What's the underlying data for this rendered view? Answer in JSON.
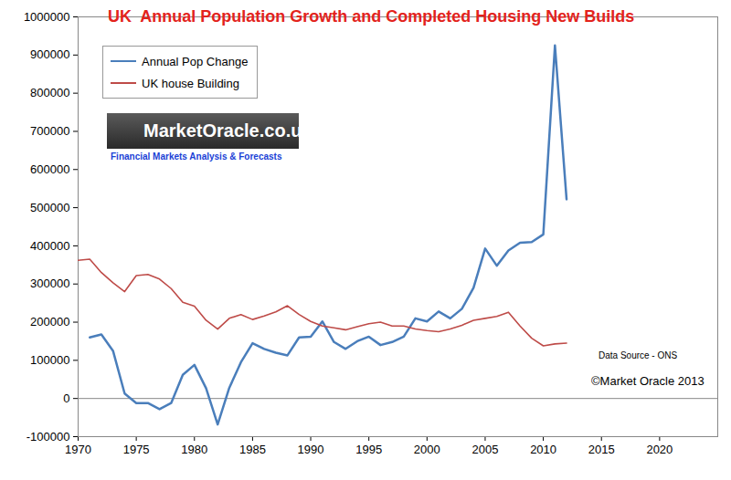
{
  "chart_data": {
    "type": "line",
    "title": "UK  Annual Population Growth and Completed Housing New Builds",
    "x": [
      1970,
      1971,
      1972,
      1973,
      1974,
      1975,
      1976,
      1977,
      1978,
      1979,
      1980,
      1981,
      1982,
      1983,
      1984,
      1985,
      1986,
      1987,
      1988,
      1989,
      1990,
      1991,
      1992,
      1993,
      1994,
      1995,
      1996,
      1997,
      1998,
      1999,
      2000,
      2001,
      2002,
      2003,
      2004,
      2005,
      2006,
      2007,
      2008,
      2009,
      2010,
      2011,
      2012
    ],
    "series": [
      {
        "name": "Annual Pop Change",
        "color": "#4a7ebb",
        "values": [
          null,
          160000,
          168000,
          125000,
          13000,
          -12000,
          -12000,
          -28000,
          -12000,
          62000,
          88000,
          27000,
          -68000,
          28000,
          95000,
          145000,
          130000,
          120000,
          113000,
          160000,
          162000,
          202000,
          148000,
          130000,
          150000,
          162000,
          140000,
          148000,
          162000,
          210000,
          202000,
          228000,
          210000,
          235000,
          290000,
          393000,
          348000,
          388000,
          408000,
          410000,
          430000,
          925000,
          522000
        ]
      },
      {
        "name": "UK house Building",
        "color": "#be4b48",
        "values": [
          362000,
          365000,
          330000,
          303000,
          280000,
          322000,
          325000,
          313000,
          288000,
          252000,
          242000,
          205000,
          182000,
          210000,
          220000,
          207000,
          216000,
          227000,
          243000,
          220000,
          202000,
          190000,
          185000,
          180000,
          188000,
          196000,
          200000,
          190000,
          190000,
          182000,
          178000,
          175000,
          182000,
          192000,
          205000,
          210000,
          215000,
          226000,
          190000,
          158000,
          138000,
          143000,
          145000
        ]
      }
    ],
    "xlim": [
      1970,
      2025
    ],
    "xticks": [
      1970,
      1975,
      1980,
      1985,
      1990,
      1995,
      2000,
      2005,
      2010,
      2015,
      2020
    ],
    "ylim": [
      -100000,
      1000000
    ],
    "yticks": [
      -100000,
      0,
      100000,
      200000,
      300000,
      400000,
      500000,
      600000,
      700000,
      800000,
      900000,
      1000000
    ],
    "grid": false,
    "legend": "top-left",
    "annotations": [
      "MarketOracle.co.uk",
      "Financial Markets Analysis & Forecasts",
      "Data Source - ONS",
      "©Market Oracle 2013"
    ]
  }
}
